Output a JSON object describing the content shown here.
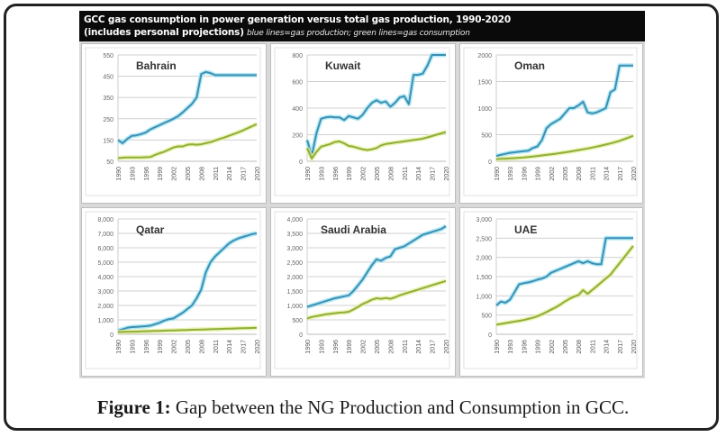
{
  "figure": {
    "header_line1": "GCC gas consumption in power generation versus total gas production, 1990-2020",
    "header_line2_bold": "(includes personal projections)",
    "header_line2_italic": "blue lines=gas production; green lines=gas consumption"
  },
  "caption": {
    "label": "Figure 1:",
    "text": "Gap between the NG Production and Consumption in GCC."
  },
  "colors": {
    "production": "#3d8fb3",
    "production_glow": "#9fe3f2",
    "consumption": "#8fae3a",
    "consumption_glow": "#e6f0a0",
    "grid": "#d0d0d0"
  },
  "chart_data": [
    {
      "type": "line",
      "title": "Bahrain",
      "x_ticks": [
        "1990",
        "1993",
        "1996",
        "1999",
        "2002",
        "2005",
        "2008",
        "2011",
        "2014",
        "2017",
        "2020"
      ],
      "y_ticks": [
        "50",
        "150",
        "250",
        "350",
        "450",
        "550"
      ],
      "ylim": [
        50,
        550
      ],
      "x": [
        1990,
        1991,
        1992,
        1993,
        1994,
        1995,
        1996,
        1997,
        1998,
        1999,
        2000,
        2001,
        2002,
        2003,
        2004,
        2005,
        2006,
        2007,
        2008,
        2009,
        2010,
        2011,
        2012,
        2013,
        2014,
        2015,
        2016,
        2017,
        2018,
        2019,
        2020
      ],
      "series": [
        {
          "name": "gas production",
          "values": [
            150,
            135,
            155,
            170,
            172,
            178,
            185,
            200,
            210,
            220,
            230,
            240,
            250,
            262,
            280,
            300,
            320,
            350,
            460,
            470,
            465,
            455,
            455,
            455,
            455,
            455,
            455,
            455,
            455,
            455,
            455
          ]
        },
        {
          "name": "gas consumption",
          "values": [
            65,
            67,
            68,
            68,
            68,
            68,
            69,
            70,
            80,
            88,
            95,
            105,
            115,
            120,
            120,
            128,
            130,
            128,
            130,
            135,
            140,
            148,
            155,
            162,
            170,
            178,
            186,
            195,
            205,
            215,
            225
          ]
        }
      ]
    },
    {
      "type": "line",
      "title": "Kuwait",
      "x_ticks": [
        "1990",
        "1993",
        "1996",
        "1999",
        "2002",
        "2005",
        "2008",
        "2011",
        "2014",
        "2017",
        "2020"
      ],
      "y_ticks": [
        "0",
        "200",
        "400",
        "600",
        "800"
      ],
      "ylim": [
        0,
        800
      ],
      "x": [
        1990,
        1991,
        1992,
        1993,
        1994,
        1995,
        1996,
        1997,
        1998,
        1999,
        2000,
        2001,
        2002,
        2003,
        2004,
        2005,
        2006,
        2007,
        2008,
        2009,
        2010,
        2011,
        2012,
        2013,
        2014,
        2015,
        2016,
        2017,
        2018,
        2019,
        2020
      ],
      "series": [
        {
          "name": "gas production",
          "values": [
            160,
            40,
            210,
            320,
            330,
            335,
            330,
            330,
            310,
            340,
            330,
            320,
            350,
            400,
            440,
            460,
            440,
            450,
            410,
            440,
            480,
            490,
            430,
            650,
            650,
            660,
            720,
            800,
            800,
            800,
            800
          ]
        },
        {
          "name": "gas consumption",
          "values": [
            100,
            20,
            70,
            110,
            120,
            130,
            145,
            150,
            135,
            115,
            110,
            100,
            90,
            85,
            90,
            100,
            120,
            130,
            135,
            140,
            145,
            150,
            155,
            160,
            165,
            170,
            180,
            190,
            200,
            210,
            220
          ]
        }
      ]
    },
    {
      "type": "line",
      "title": "Oman",
      "x_ticks": [
        "1990",
        "1993",
        "1996",
        "1999",
        "2002",
        "2005",
        "2008",
        "2011",
        "2014",
        "2017",
        "2020"
      ],
      "y_ticks": [
        "0",
        "500",
        "1000",
        "1500",
        "2000"
      ],
      "ylim": [
        0,
        2000
      ],
      "x": [
        1990,
        1991,
        1992,
        1993,
        1994,
        1995,
        1996,
        1997,
        1998,
        1999,
        2000,
        2001,
        2002,
        2003,
        2004,
        2005,
        2006,
        2007,
        2008,
        2009,
        2010,
        2011,
        2012,
        2013,
        2014,
        2015,
        2016,
        2017,
        2018,
        2019,
        2020
      ],
      "series": [
        {
          "name": "gas production",
          "values": [
            100,
            120,
            140,
            160,
            170,
            180,
            190,
            200,
            250,
            280,
            400,
            620,
            700,
            750,
            800,
            900,
            1000,
            1000,
            1050,
            1120,
            920,
            900,
            920,
            960,
            1000,
            1300,
            1350,
            1800,
            1800,
            1800,
            1800
          ]
        },
        {
          "name": "gas consumption",
          "values": [
            40,
            45,
            50,
            55,
            60,
            66,
            72,
            80,
            90,
            100,
            110,
            120,
            130,
            142,
            155,
            168,
            180,
            195,
            210,
            225,
            240,
            258,
            276,
            295,
            315,
            335,
            360,
            385,
            415,
            445,
            480
          ]
        }
      ]
    },
    {
      "type": "line",
      "title": "Qatar",
      "x_ticks": [
        "1990",
        "1993",
        "1996",
        "1999",
        "2002",
        "2005",
        "2008",
        "2011",
        "2014",
        "2017",
        "2020"
      ],
      "y_ticks": [
        "0",
        "1,000",
        "2,000",
        "3,000",
        "4,000",
        "5,000",
        "6,000",
        "7,000",
        "8,000"
      ],
      "ylim": [
        0,
        8000
      ],
      "x": [
        1990,
        1991,
        1992,
        1993,
        1994,
        1995,
        1996,
        1997,
        1998,
        1999,
        2000,
        2001,
        2002,
        2003,
        2004,
        2005,
        2006,
        2007,
        2008,
        2009,
        2010,
        2011,
        2012,
        2013,
        2014,
        2015,
        2016,
        2017,
        2018,
        2019,
        2020
      ],
      "series": [
        {
          "name": "gas production",
          "values": [
            250,
            350,
            450,
            500,
            520,
            540,
            560,
            600,
            700,
            800,
            950,
            1050,
            1100,
            1300,
            1500,
            1750,
            2000,
            2500,
            3100,
            4300,
            5000,
            5400,
            5700,
            6000,
            6300,
            6500,
            6650,
            6750,
            6850,
            6950,
            7000
          ]
        },
        {
          "name": "gas consumption",
          "values": [
            150,
            160,
            170,
            180,
            190,
            200,
            210,
            220,
            230,
            240,
            250,
            260,
            270,
            280,
            290,
            300,
            310,
            320,
            330,
            340,
            350,
            360,
            370,
            380,
            390,
            400,
            410,
            420,
            430,
            440,
            450
          ]
        }
      ]
    },
    {
      "type": "line",
      "title": "Saudi Arabia",
      "x_ticks": [
        "1990",
        "1993",
        "1996",
        "1999",
        "2002",
        "2005",
        "2008",
        "2011",
        "2014",
        "2017",
        "2020"
      ],
      "y_ticks": [
        "0",
        "500",
        "1,000",
        "1,500",
        "2,000",
        "2,500",
        "3,000",
        "3,500",
        "4,000"
      ],
      "ylim": [
        0,
        4000
      ],
      "x": [
        1990,
        1991,
        1992,
        1993,
        1994,
        1995,
        1996,
        1997,
        1998,
        1999,
        2000,
        2001,
        2002,
        2003,
        2004,
        2005,
        2006,
        2007,
        2008,
        2009,
        2010,
        2011,
        2012,
        2013,
        2014,
        2015,
        2016,
        2017,
        2018,
        2019,
        2020
      ],
      "series": [
        {
          "name": "gas production",
          "values": [
            950,
            1000,
            1050,
            1100,
            1150,
            1200,
            1250,
            1280,
            1320,
            1350,
            1500,
            1700,
            1900,
            2150,
            2400,
            2600,
            2550,
            2650,
            2700,
            2950,
            3000,
            3050,
            3150,
            3250,
            3350,
            3450,
            3500,
            3550,
            3600,
            3650,
            3750
          ]
        },
        {
          "name": "gas consumption",
          "values": [
            550,
            600,
            630,
            660,
            690,
            710,
            730,
            750,
            760,
            780,
            860,
            950,
            1050,
            1120,
            1200,
            1250,
            1230,
            1260,
            1230,
            1280,
            1350,
            1400,
            1450,
            1500,
            1550,
            1600,
            1650,
            1700,
            1750,
            1800,
            1850
          ]
        }
      ]
    },
    {
      "type": "line",
      "title": "UAE",
      "x_ticks": [
        "1990",
        "1993",
        "1996",
        "1999",
        "2002",
        "2005",
        "2008",
        "2011",
        "2014",
        "2017",
        "2020"
      ],
      "y_ticks": [
        "0",
        "500",
        "1,000",
        "1,500",
        "2,000",
        "2,500",
        "3,000"
      ],
      "ylim": [
        0,
        3000
      ],
      "x": [
        1990,
        1991,
        1992,
        1993,
        1994,
        1995,
        1996,
        1997,
        1998,
        1999,
        2000,
        2001,
        2002,
        2003,
        2004,
        2005,
        2006,
        2007,
        2008,
        2009,
        2010,
        2011,
        2012,
        2013,
        2014,
        2015,
        2016,
        2017,
        2018,
        2019,
        2020
      ],
      "series": [
        {
          "name": "gas production",
          "values": [
            750,
            850,
            820,
            900,
            1100,
            1300,
            1330,
            1350,
            1380,
            1420,
            1450,
            1500,
            1600,
            1650,
            1700,
            1750,
            1800,
            1850,
            1900,
            1850,
            1900,
            1850,
            1820,
            1820,
            2500,
            2500,
            2500,
            2500,
            2500,
            2500,
            2500
          ]
        },
        {
          "name": "gas consumption",
          "values": [
            250,
            270,
            290,
            310,
            330,
            350,
            370,
            400,
            430,
            470,
            520,
            580,
            640,
            700,
            770,
            850,
            920,
            980,
            1020,
            1150,
            1050,
            1150,
            1250,
            1350,
            1450,
            1550,
            1700,
            1850,
            2000,
            2150,
            2300
          ]
        }
      ]
    }
  ]
}
